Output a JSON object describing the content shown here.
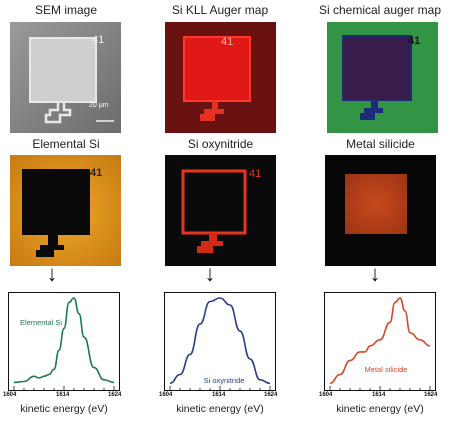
{
  "maps": [
    {
      "title": "SEM image",
      "number": "41",
      "scale": "20 µm"
    },
    {
      "title": "Si KLL Auger map",
      "number": "41"
    },
    {
      "title": "Si chemical auger map",
      "number": "41"
    },
    {
      "title": "Elemental Si",
      "number": "41"
    },
    {
      "title": "Si oxynitride",
      "number": "41"
    },
    {
      "title": "Metal silicide"
    }
  ],
  "arrow": "↓",
  "colors": {
    "elemental_si": "#1f7a4a",
    "si_oxynitride": "#2a3f8f",
    "metal_silicide": "#d24a2a"
  },
  "chart_data": [
    {
      "type": "line",
      "series": [
        {
          "name": "Elemental Si",
          "x": [
            1604,
            1606,
            1608,
            1609,
            1610,
            1611,
            1612,
            1613,
            1614,
            1615,
            1616,
            1617,
            1618,
            1620,
            1622,
            1624
          ],
          "values": [
            0.03,
            0.04,
            0.1,
            0.08,
            0.1,
            0.12,
            0.18,
            0.4,
            0.65,
            0.95,
            1.0,
            0.82,
            0.55,
            0.2,
            0.06,
            0.03
          ]
        }
      ],
      "x_ticks": [
        "1604",
        "1614",
        "1624"
      ],
      "xlabel": "kinetic energy (eV)",
      "xlim": [
        1604,
        1624
      ]
    },
    {
      "type": "line",
      "series": [
        {
          "name": "Si oxynitride",
          "x": [
            1604,
            1606,
            1608,
            1610,
            1612,
            1614,
            1616,
            1618,
            1620,
            1622,
            1624
          ],
          "values": [
            0.02,
            0.12,
            0.35,
            0.7,
            0.96,
            1.0,
            0.92,
            0.62,
            0.3,
            0.06,
            0.02
          ]
        }
      ],
      "x_ticks": [
        "1604",
        "1614",
        "1624"
      ],
      "xlabel": "kinetic energy (eV)",
      "xlim": [
        1604,
        1624
      ]
    },
    {
      "type": "line",
      "series": [
        {
          "name": "Metal silicide",
          "x": [
            1604,
            1606,
            1608,
            1610,
            1611,
            1612,
            1614,
            1616,
            1617,
            1618,
            1619,
            1620,
            1622,
            1624
          ],
          "values": [
            0.02,
            0.12,
            0.28,
            0.38,
            0.38,
            0.45,
            0.52,
            0.72,
            0.95,
            1.0,
            0.85,
            0.6,
            0.52,
            0.45
          ]
        }
      ],
      "x_ticks": [
        "1604",
        "1614",
        "1624"
      ],
      "xlabel": "kinetic energy (eV)",
      "xlim": [
        1604,
        1624
      ]
    }
  ]
}
